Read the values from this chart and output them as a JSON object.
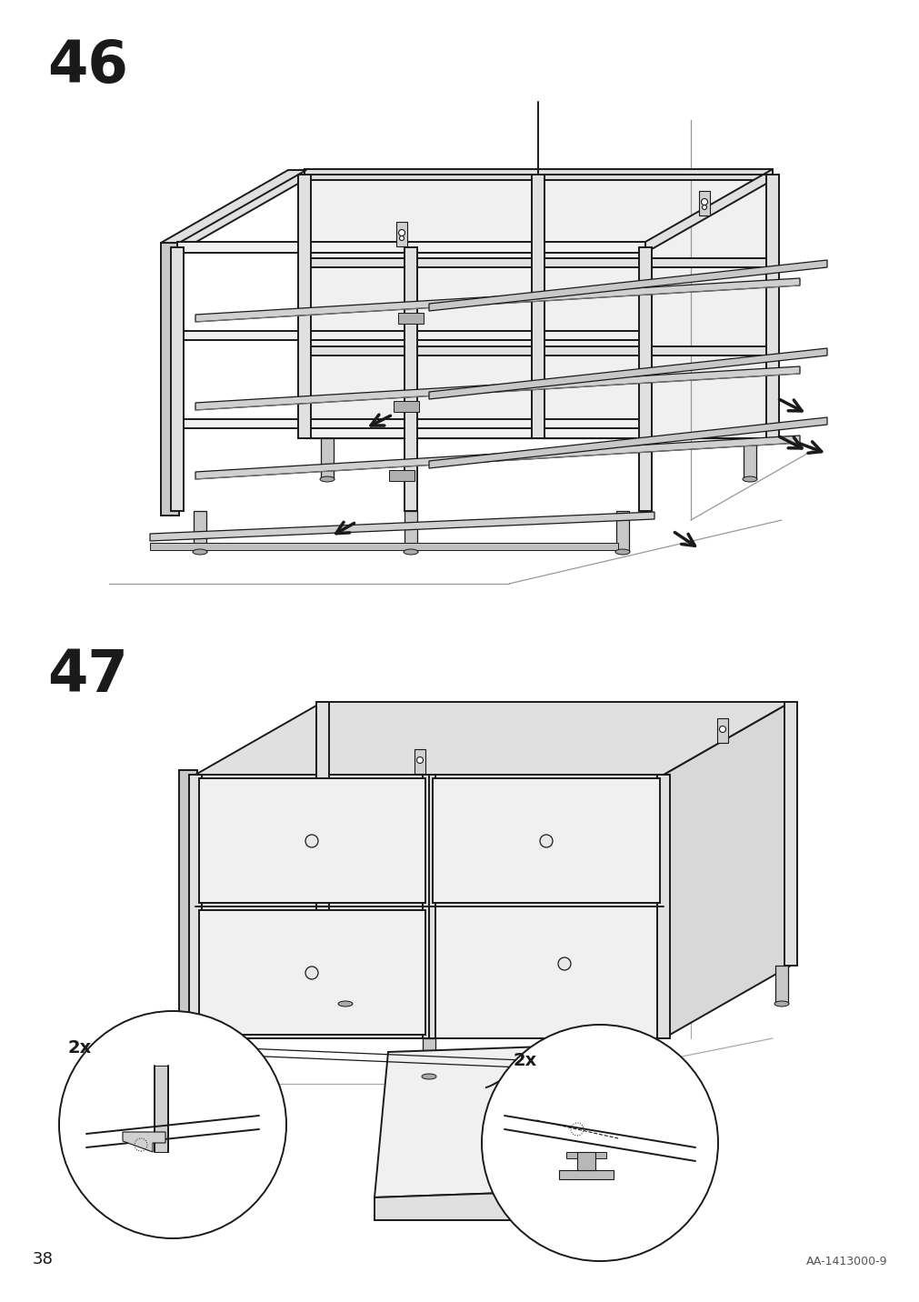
{
  "background_color": "#ffffff",
  "page_number": "38",
  "product_code": "AA-1413000-9",
  "step_46_label": "46",
  "step_47_label": "47",
  "label_fontsize": 46,
  "label_font_weight": "bold",
  "page_num_fontsize": 13,
  "code_fontsize": 9,
  "line_color": "#1a1a1a",
  "fill_white": "#ffffff",
  "fill_light": "#f0f0f0",
  "fill_panel": "#e0e0e0",
  "fill_dark": "#c8c8c8",
  "fill_side": "#d8d8d8"
}
